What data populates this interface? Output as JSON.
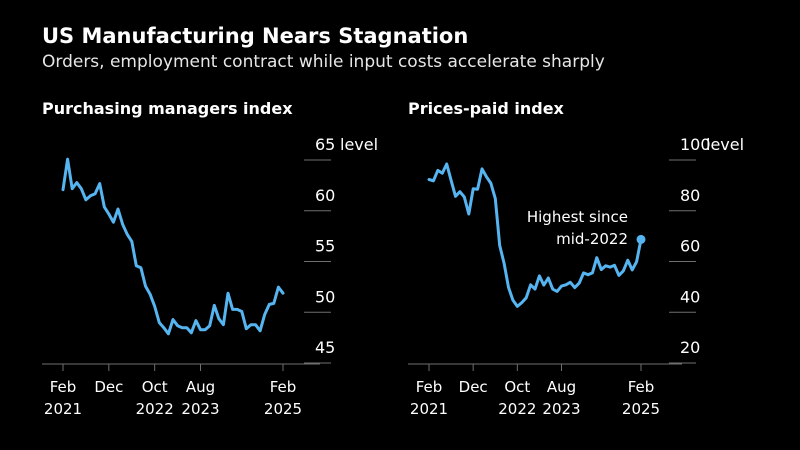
{
  "header": {
    "title": "US Manufacturing Nears Stagnation",
    "subtitle": "Orders, employment contract while input costs accelerate sharply"
  },
  "colors": {
    "background": "#000000",
    "line": "#56b4f0",
    "grid": "#6f6f6f",
    "text": "#ffffff"
  },
  "chart_data": [
    {
      "type": "line",
      "title": "Purchasing managers index",
      "ylabel": "level",
      "ylim": [
        44,
        66
      ],
      "yticks": [
        45,
        50,
        55,
        60,
        65
      ],
      "xlim": [
        0,
        48
      ],
      "xticks": [
        {
          "x": 0,
          "label": "Feb",
          "label2": "2021"
        },
        {
          "x": 10,
          "label": "Dec",
          "label2": ""
        },
        {
          "x": 20,
          "label": "Oct",
          "label2": "2022"
        },
        {
          "x": 30,
          "label": "Aug",
          "label2": "2023"
        },
        {
          "x": 48,
          "label": "Feb",
          "label2": "2025"
        }
      ],
      "series": [
        {
          "x": [
            0,
            1,
            2,
            3,
            4,
            5,
            6,
            7,
            8,
            9,
            10,
            11,
            12,
            13,
            14,
            15,
            16,
            17,
            18,
            19,
            20,
            21,
            22,
            23,
            24,
            25,
            26,
            27,
            28,
            29,
            30,
            31,
            32,
            33,
            34,
            35,
            36,
            37,
            38,
            39,
            40,
            41,
            42,
            43,
            44,
            45,
            46,
            47,
            48
          ],
          "values": [
            60.5,
            63.5,
            60.6,
            61.2,
            60.6,
            59.5,
            59.9,
            60.1,
            61.1,
            58.8,
            58.1,
            57.3,
            58.6,
            57.1,
            56.1,
            55.4,
            53.0,
            52.8,
            51.0,
            50.2,
            49.0,
            47.4,
            46.9,
            46.3,
            47.7,
            47.1,
            46.9,
            46.9,
            46.4,
            47.6,
            46.7,
            46.7,
            47.1,
            49.1,
            47.8,
            47.2,
            50.3,
            48.7,
            48.7,
            48.5,
            46.8,
            47.2,
            47.2,
            46.6,
            48.2,
            49.2,
            49.3,
            50.9,
            50.3
          ],
          "last_point_marker": false
        }
      ]
    },
    {
      "type": "line",
      "title": "Prices-paid index",
      "ylabel": "level",
      "ylim": [
        20,
        100
      ],
      "yticks": [
        20,
        40,
        60,
        80,
        100
      ],
      "xlim": [
        0,
        48
      ],
      "xticks": [
        {
          "x": 0,
          "label": "Feb",
          "label2": "2021"
        },
        {
          "x": 10,
          "label": "Dec",
          "label2": ""
        },
        {
          "x": 20,
          "label": "Oct",
          "label2": "2022"
        },
        {
          "x": 30,
          "label": "Aug",
          "label2": "2023"
        },
        {
          "x": 48,
          "label": "Feb",
          "label2": "2025"
        }
      ],
      "annotation": {
        "lines": [
          "Highest since",
          "mid-2022"
        ]
      },
      "series": [
        {
          "x": [
            0,
            1,
            2,
            3,
            4,
            5,
            6,
            7,
            8,
            9,
            10,
            11,
            12,
            13,
            14,
            15,
            16,
            17,
            18,
            19,
            20,
            21,
            22,
            23,
            24,
            25,
            26,
            27,
            28,
            29,
            30,
            31,
            32,
            33,
            34,
            35,
            36,
            37,
            38,
            39,
            40,
            41,
            42,
            43,
            44,
            45,
            46,
            47,
            48
          ],
          "values": [
            86,
            85.5,
            89.6,
            88.5,
            92.1,
            85.7,
            79.4,
            81.2,
            79.1,
            72.4,
            82.4,
            82.2,
            90.2,
            87.1,
            84.6,
            78.5,
            60.0,
            53.0,
            43.5,
            38.5,
            36.0,
            37.5,
            39.4,
            44.5,
            42.8,
            48.0,
            44.4,
            47.2,
            42.8,
            41.9,
            44.0,
            44.5,
            45.5,
            43.4,
            45.2,
            49.2,
            48.5,
            49.2,
            55.2,
            50.5,
            52.0,
            51.5,
            52.2,
            48.2,
            50.0,
            54.2,
            50.4,
            53.6,
            62.4
          ],
          "last_point_marker": true
        }
      ]
    }
  ]
}
